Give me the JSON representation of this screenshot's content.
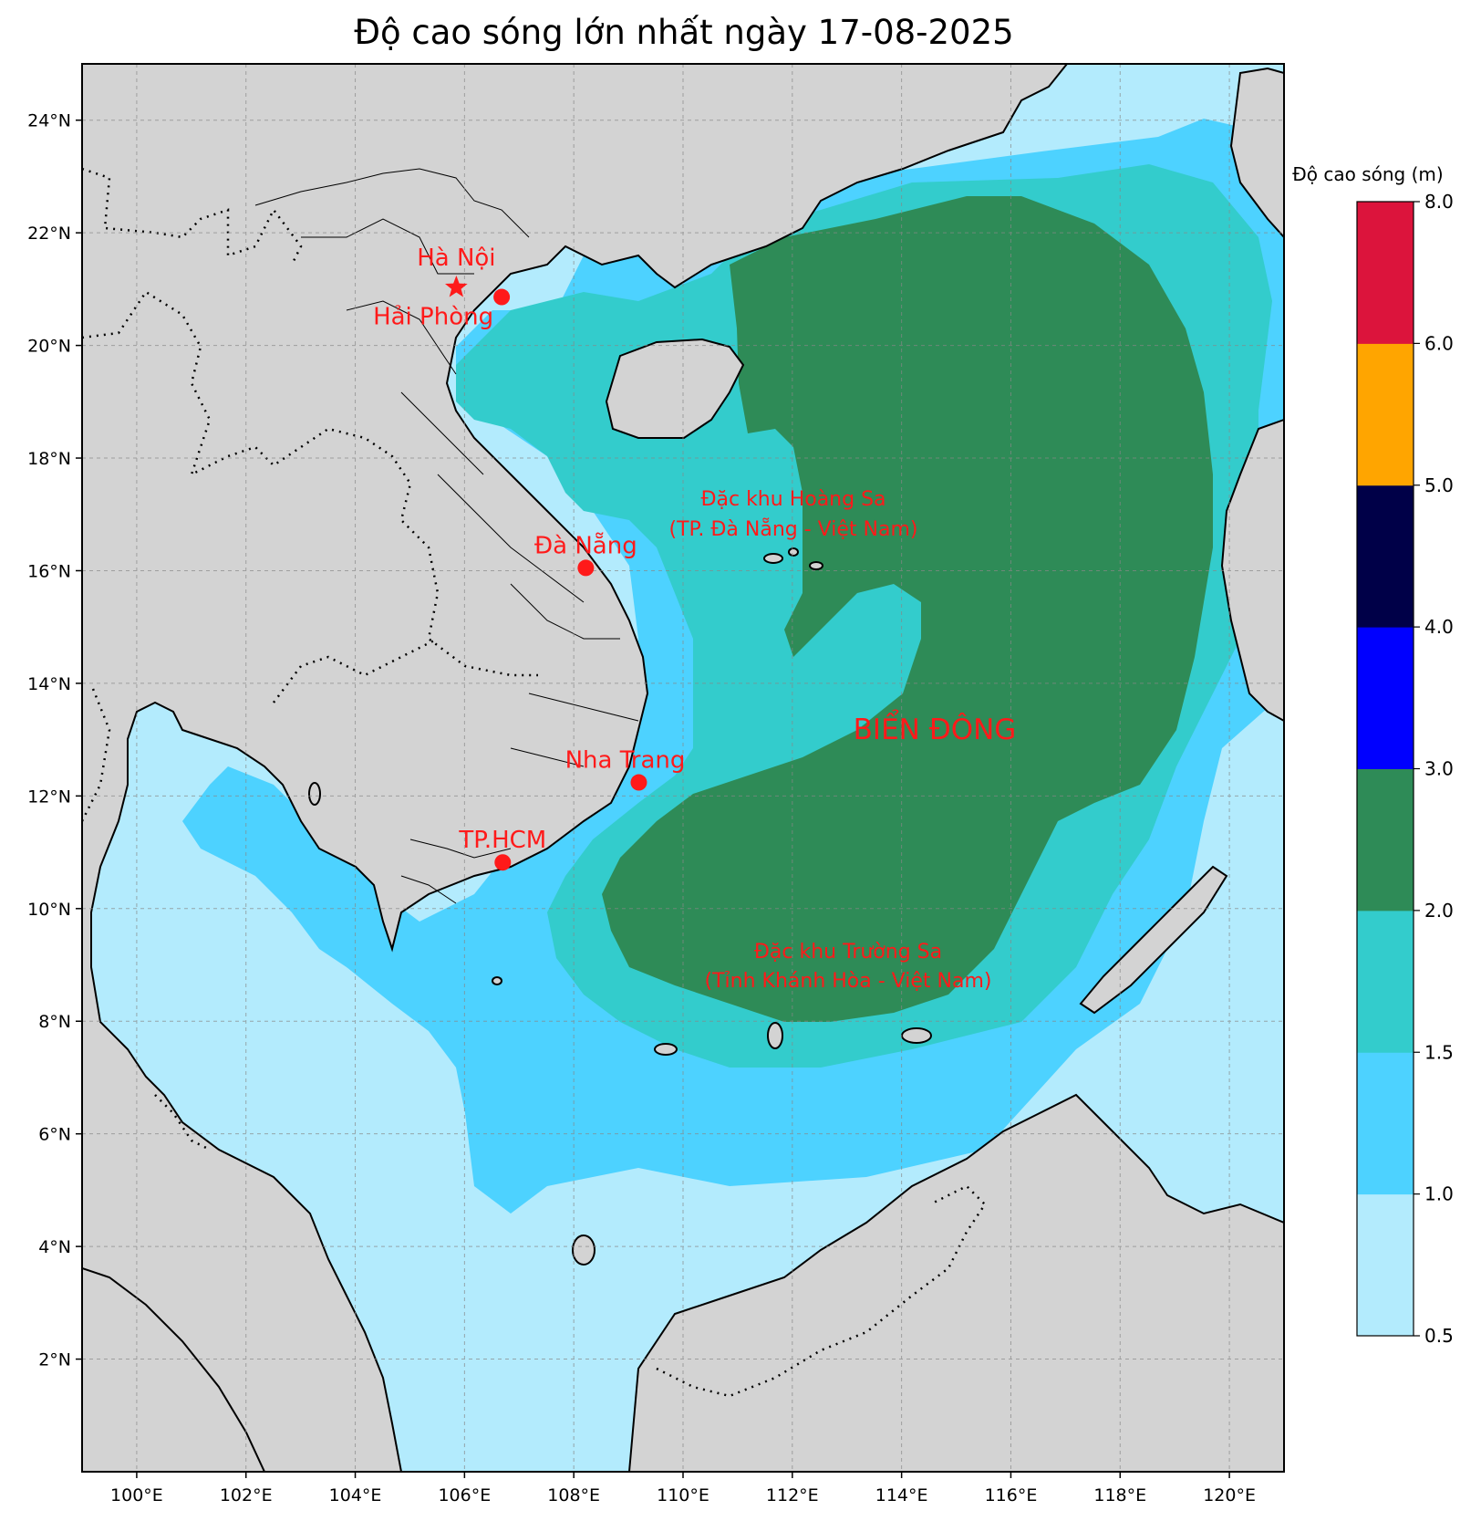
{
  "title": "Độ cao sóng lớn nhất ngày 17-08-2025",
  "axes": {
    "lon_labels": [
      "100°E",
      "102°E",
      "104°E",
      "106°E",
      "108°E",
      "110°E",
      "112°E",
      "114°E",
      "116°E",
      "118°E",
      "120°E"
    ],
    "lat_labels": [
      "24°N",
      "22°N",
      "20°N",
      "18°N",
      "16°N",
      "14°N",
      "12°N",
      "10°N",
      "8°N",
      "6°N",
      "4°N",
      "2°N"
    ]
  },
  "cities": [
    {
      "name": "Hà Nội",
      "lon": 105.85,
      "lat": 21.03,
      "marker": "star"
    },
    {
      "name": "Hải Phòng",
      "lon": 106.68,
      "lat": 20.86,
      "marker": "dot"
    },
    {
      "name": "Đà Nẵng",
      "lon": 108.22,
      "lat": 16.05,
      "marker": "dot"
    },
    {
      "name": "Nha Trang",
      "lon": 109.19,
      "lat": 12.24,
      "marker": "dot"
    },
    {
      "name": "TP.HCM",
      "lon": 106.7,
      "lat": 10.82,
      "marker": "dot"
    }
  ],
  "regions": {
    "hoang_sa_line1": "Đặc khu Hoàng Sa",
    "hoang_sa_line2": "(TP. Đà Nẵng - Việt Nam)",
    "truong_sa_line1": "Đặc khu Trường Sa",
    "truong_sa_line2": "(Tỉnh Khánh Hòa - Việt Nam)",
    "sea_name": "BIỂN ĐÔNG"
  },
  "colorbar": {
    "label": "Độ cao sóng (m)",
    "ticks": [
      "0.5",
      "1.0",
      "1.5",
      "2.0",
      "3.0",
      "4.0",
      "5.0",
      "6.0",
      "8.0"
    ],
    "colors": [
      "#b3ebfd",
      "#4dd2ff",
      "#33cccc",
      "#2e8b57",
      "#0000ff",
      "#000048",
      "#ffa500",
      "#dc143c"
    ]
  },
  "colors": {
    "land": "#d3d3d3",
    "highlight": "#ff1a1a"
  }
}
